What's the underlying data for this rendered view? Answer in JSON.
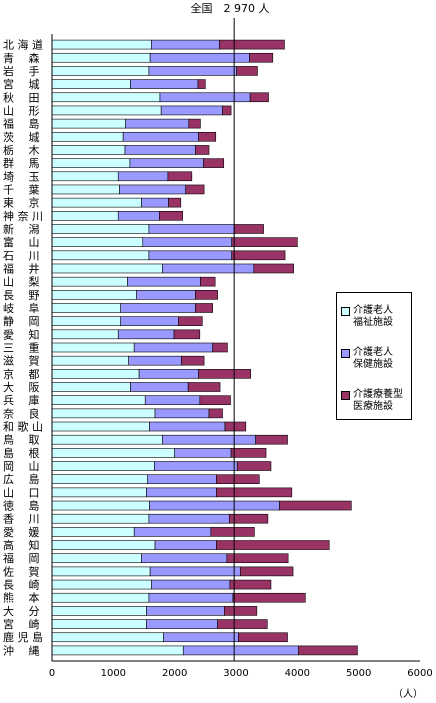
{
  "chart_data": {
    "type": "bar",
    "orientation": "horizontal",
    "stacked": true,
    "title": "全国　2 970 人",
    "xlabel": "（人）",
    "xlim": [
      0,
      6000
    ],
    "xticks": [
      "0",
      "1000",
      "2000",
      "3000",
      "4000",
      "5000",
      "6000"
    ],
    "reference_line": 2970,
    "categories": [
      "北海道",
      "青森",
      "岩手",
      "宮城",
      "秋田",
      "山形",
      "福島",
      "茨城",
      "栃木",
      "群馬",
      "埼玉",
      "千葉",
      "東京",
      "神奈川",
      "新潟",
      "富山",
      "石川",
      "福井",
      "山梨",
      "長野",
      "岐阜",
      "静岡",
      "愛知",
      "三重",
      "滋賀",
      "京都",
      "大阪",
      "兵庫",
      "奈良",
      "和歌山",
      "鳥取",
      "島根",
      "岡山",
      "広島",
      "山口",
      "徳島",
      "香川",
      "愛媛",
      "高知",
      "福岡",
      "佐賀",
      "長崎",
      "熊本",
      "大分",
      "宮崎",
      "鹿児島",
      "沖縄"
    ],
    "category_labels": [
      "北 海 道",
      "青　 森",
      "岩　 手",
      "宮　 城",
      "秋　 田",
      "山　 形",
      "福　 島",
      "茨　 城",
      "栃　 木",
      "群　 馬",
      "埼　 玉",
      "千　 葉",
      "東　 京",
      "神 奈 川",
      "新　 潟",
      "富　 山",
      "石　 川",
      "福　 井",
      "山　 梨",
      "長　 野",
      "岐　 阜",
      "静　 岡",
      "愛　 知",
      "三　 重",
      "滋　 賀",
      "京　 都",
      "大　 阪",
      "兵　 庫",
      "奈　 良",
      "和 歌 山",
      "鳥　 取",
      "島　 根",
      "岡　 山",
      "広　 島",
      "山　 口",
      "徳　 島",
      "香　 川",
      "愛　 媛",
      "高　 知",
      "福　 岡",
      "佐　 賀",
      "長　 崎",
      "熊　 本",
      "大　 分",
      "宮　 崎",
      "鹿 児 島",
      "沖　 縄"
    ],
    "series": [
      {
        "name": "介護老人福祉施設",
        "color": "#ccffff",
        "values": [
          1620,
          1600,
          1580,
          1280,
          1760,
          1780,
          1200,
          1160,
          1190,
          1270,
          1080,
          1100,
          1460,
          1080,
          1580,
          1480,
          1580,
          1800,
          1230,
          1380,
          1120,
          1120,
          1080,
          1340,
          1250,
          1420,
          1280,
          1520,
          1680,
          1590,
          1800,
          2000,
          1670,
          1560,
          1540,
          1590,
          1580,
          1340,
          1680,
          1460,
          1600,
          1620,
          1580,
          1540,
          1540,
          1820,
          2140
        ]
      },
      {
        "name": "介護老人保健施設",
        "color": "#9999ff",
        "values": [
          1110,
          1620,
          1430,
          1100,
          1470,
          1000,
          1030,
          1230,
          1150,
          1200,
          810,
          1080,
          440,
          670,
          1390,
          1450,
          1350,
          1490,
          1190,
          960,
          1220,
          940,
          910,
          1280,
          860,
          970,
          940,
          890,
          880,
          1230,
          1520,
          920,
          1350,
          1120,
          1140,
          2120,
          1310,
          1250,
          1000,
          1390,
          1470,
          1280,
          1370,
          1270,
          1160,
          1220,
          1880
        ]
      },
      {
        "name": "介護療養型医療施設",
        "color": "#993366",
        "values": [
          1060,
          380,
          340,
          120,
          300,
          140,
          190,
          280,
          220,
          330,
          390,
          300,
          200,
          380,
          480,
          1070,
          870,
          650,
          240,
          360,
          280,
          390,
          420,
          240,
          370,
          850,
          520,
          500,
          220,
          340,
          520,
          570,
          550,
          700,
          1230,
          1170,
          630,
          710,
          1840,
          1000,
          860,
          670,
          1180,
          530,
          810,
          800,
          960
        ]
      }
    ]
  },
  "legend": {
    "items": [
      {
        "label": "介護老人\n福祉施設",
        "color": "#ccffff"
      },
      {
        "label": "介護老人\n保健施設",
        "color": "#9999ff"
      },
      {
        "label": "介護療養型\n医療施設",
        "color": "#993366"
      }
    ]
  }
}
